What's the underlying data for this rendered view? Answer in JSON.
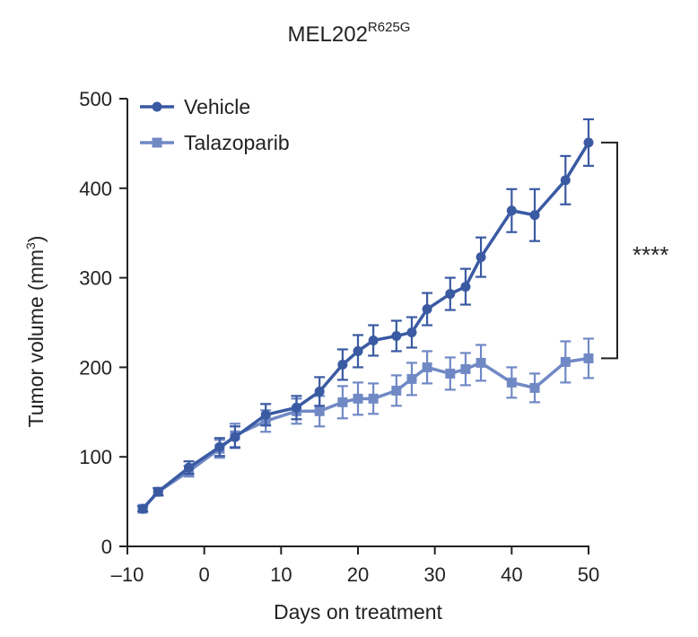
{
  "chart_data": {
    "type": "line",
    "title": "MEL202",
    "title_superscript": "R625G",
    "xlabel": "Days on treatment",
    "ylabel_main": "Tumor volume (mm",
    "ylabel_sup": "3",
    "ylabel_close": ")",
    "xlim": [
      -10,
      50
    ],
    "ylim": [
      0,
      500
    ],
    "xticks": [
      -10,
      0,
      10,
      20,
      30,
      40,
      50
    ],
    "xtick_labels": [
      "–10",
      "0",
      "10",
      "20",
      "30",
      "40",
      "50"
    ],
    "yticks": [
      0,
      100,
      200,
      300,
      400,
      500
    ],
    "ytick_labels": [
      "0",
      "100",
      "200",
      "300",
      "400",
      "500"
    ],
    "legend_position": "top-left",
    "significance_label": "****",
    "series": [
      {
        "name": "Vehicle",
        "marker": "circle",
        "color": "#3a5aa2",
        "x": [
          -8,
          -6,
          -2,
          2,
          4,
          8,
          12,
          15,
          18,
          20,
          22,
          25,
          27,
          29,
          32,
          34,
          36,
          40,
          43,
          47,
          50
        ],
        "y": [
          42,
          61,
          88,
          111,
          122,
          147,
          155,
          173,
          203,
          218,
          230,
          235,
          239,
          265,
          282,
          290,
          323,
          375,
          370,
          409,
          451
        ],
        "err": [
          3,
          4,
          7,
          10,
          12,
          12,
          13,
          16,
          17,
          18,
          17,
          17,
          17,
          18,
          18,
          20,
          22,
          24,
          29,
          27,
          26
        ]
      },
      {
        "name": "Talazoparib",
        "marker": "square",
        "color": "#7089c5",
        "x": [
          -8,
          -6,
          -2,
          2,
          4,
          8,
          12,
          15,
          18,
          20,
          22,
          25,
          27,
          29,
          32,
          34,
          36,
          40,
          43,
          47,
          50
        ],
        "y": [
          42,
          61,
          84,
          109,
          124,
          140,
          151,
          151,
          161,
          165,
          165,
          174,
          187,
          200,
          193,
          198,
          205,
          183,
          177,
          206,
          210
        ],
        "err": [
          3,
          4,
          6,
          10,
          13,
          12,
          14,
          17,
          18,
          18,
          17,
          17,
          18,
          18,
          18,
          18,
          20,
          17,
          16,
          23,
          22
        ]
      }
    ]
  }
}
